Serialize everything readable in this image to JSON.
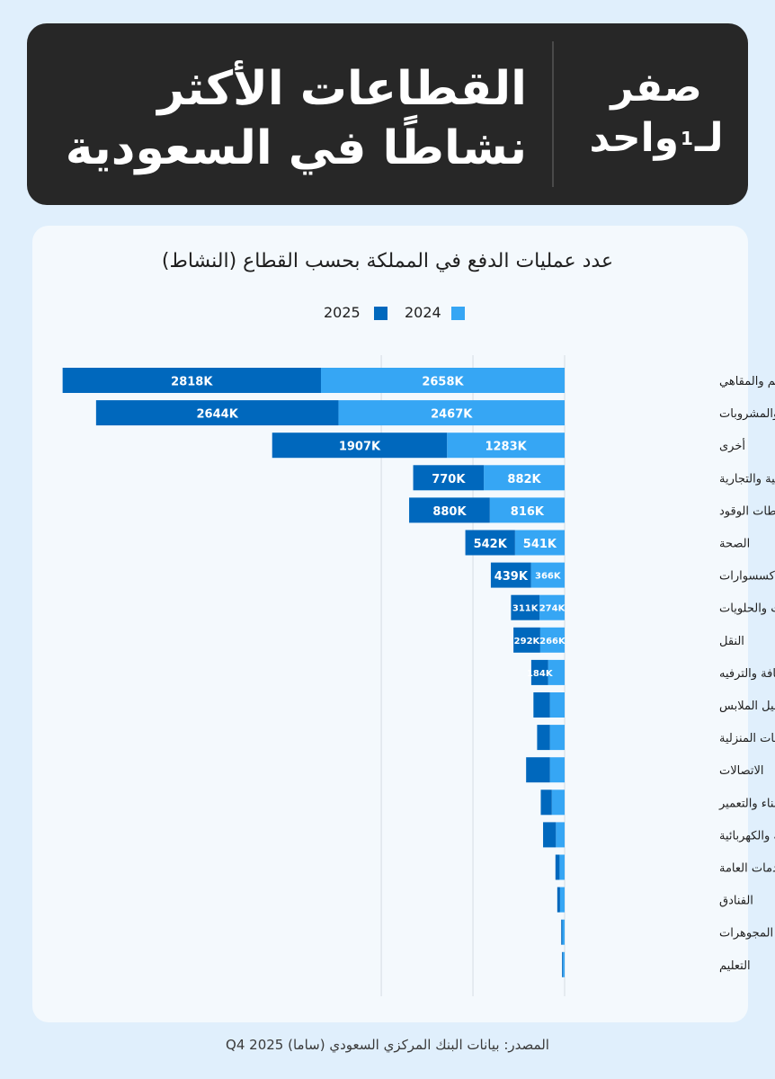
{
  "header": {
    "title_line1": "القطاعات الأكثر",
    "title_line2": "نشاطًا في السعودية",
    "logo_line1": "صفر",
    "logo_line2_a": "لـ",
    "logo_sup": "1",
    "logo_line2_b": "واحد"
  },
  "colors": {
    "series_2025": "#0068bd",
    "series_2024": "#36a6f4",
    "header_bg": "#272727",
    "page_bg": "#e0effc",
    "card_bg": "#f4f9fd"
  },
  "source": "المصدر: بيانات البنك المركزي السعودي (ساما) Q4 2025",
  "chart_data": {
    "type": "bar",
    "orientation": "horizontal",
    "stacked": true,
    "title": "عدد عمليات الدفع في المملكة بحسب القطاع (النشاط)",
    "legend_position": "top",
    "grid": true,
    "xlim": [
      0,
      5600
    ],
    "categories": [
      "المطاعم والمقاهي",
      "الأطعمة والمشروبات",
      "أخرى",
      "الخدمات المهنية والتجارية",
      "محطات الوقود",
      "الصحة",
      "الملبوسات والإكسسوارات",
      "المخبوزات والحلويات",
      "النقل",
      "الثقافة والترفيه",
      "خدمات غسيل الملابس",
      "الأثاث والمستلزمات المنزلية",
      "الاتصالات",
      "مواد البناء والتعمير",
      "الأجهزة الإلكترونية والكهربائية",
      "المنافع والخدمات العامة",
      "الفنادق",
      "المجوهرات",
      "التعليم"
    ],
    "series": [
      {
        "name": "2024",
        "color": "#36a6f4",
        "values": [
          2658,
          2467,
          1283,
          882,
          816,
          541,
          366,
          274,
          266,
          180,
          160,
          160,
          160,
          140,
          95,
          55,
          50,
          25,
          18
        ],
        "labels": [
          "2658K",
          "2467K",
          "1283K",
          "882K",
          "816K",
          "541K",
          "366K",
          "274K",
          "266K",
          "",
          "",
          "",
          "",
          "",
          "",
          "",
          "",
          "",
          ""
        ]
      },
      {
        "name": "2025",
        "color": "#0068bd",
        "values": [
          2818,
          2644,
          1907,
          770,
          880,
          542,
          439,
          311,
          292,
          184,
          180,
          140,
          260,
          120,
          140,
          45,
          30,
          12,
          10
        ],
        "labels": [
          "2818K",
          "2644K",
          "1907K",
          "770K",
          "880K",
          "542K",
          "439K",
          "311K",
          "292K",
          "184K",
          "",
          "",
          "",
          "",
          "",
          "",
          "",
          "",
          ""
        ]
      }
    ]
  }
}
